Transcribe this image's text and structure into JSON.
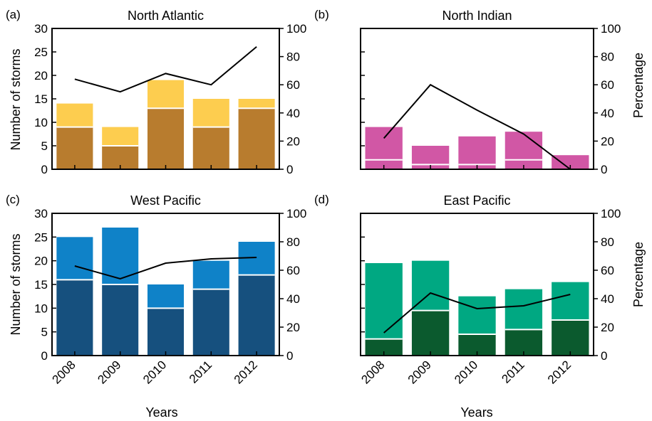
{
  "figure": {
    "x_axis_label": "Years",
    "left_axis_label": "Number of storms",
    "right_axis_label": "Percentage"
  },
  "chart_data": [
    {
      "type": "bar",
      "panel": "(a)",
      "title": "North Atlantic",
      "categories": [
        "2008",
        "2009",
        "2010",
        "2011",
        "2012"
      ],
      "stacked": true,
      "series": [
        {
          "values": [
            9,
            5,
            13,
            9,
            13
          ],
          "color": "#b87c2e",
          "axis": "left"
        },
        {
          "values": [
            5,
            4,
            6,
            6,
            2
          ],
          "color": "#fdcd4f",
          "axis": "left"
        }
      ],
      "line": {
        "values": [
          64,
          55,
          68,
          60,
          87
        ],
        "color": "#000000",
        "axis": "right"
      },
      "ylim_left": [
        0,
        30
      ],
      "yticks_left": [
        0,
        5,
        10,
        15,
        20,
        25,
        30
      ],
      "ylim_right": [
        0,
        100
      ],
      "yticks_right": [
        0,
        20,
        40,
        60,
        80,
        100
      ]
    },
    {
      "type": "bar",
      "panel": "(b)",
      "title": "North Indian",
      "categories": [
        "2008",
        "2009",
        "2010",
        "2011",
        "2012"
      ],
      "stacked": true,
      "series": [
        {
          "values": [
            2,
            1,
            1,
            2,
            0
          ],
          "color": "#d157a5",
          "axis": "left"
        },
        {
          "values": [
            7,
            4,
            6,
            6,
            3
          ],
          "color": "#d157a5",
          "axis": "left"
        }
      ],
      "line": {
        "values": [
          22,
          60,
          42,
          25,
          0
        ],
        "color": "#000000",
        "axis": "right"
      },
      "ylim_left": [
        0,
        30
      ],
      "ylim_right": [
        0,
        100
      ],
      "yticks_right": [
        0,
        20,
        40,
        60,
        80,
        100
      ]
    },
    {
      "type": "bar",
      "panel": "(c)",
      "title": "West Pacific",
      "categories": [
        "2008",
        "2009",
        "2010",
        "2011",
        "2012"
      ],
      "stacked": true,
      "series": [
        {
          "values": [
            16,
            15,
            10,
            14,
            17
          ],
          "color": "#16507e",
          "axis": "left"
        },
        {
          "values": [
            9,
            12,
            5,
            6,
            7
          ],
          "color": "#0f82c8",
          "axis": "left"
        }
      ],
      "line": {
        "values": [
          63,
          54,
          65,
          68,
          69
        ],
        "color": "#000000",
        "axis": "right"
      },
      "ylim_left": [
        0,
        30
      ],
      "yticks_left": [
        0,
        5,
        10,
        15,
        20,
        25,
        30
      ],
      "ylim_right": [
        0,
        100
      ],
      "yticks_right": [
        0,
        20,
        40,
        60,
        80,
        100
      ]
    },
    {
      "type": "bar",
      "panel": "(d)",
      "title": "East Pacific",
      "categories": [
        "2008",
        "2009",
        "2010",
        "2011",
        "2012"
      ],
      "stacked": true,
      "series": [
        {
          "values": [
            3.5,
            9.5,
            4.5,
            5.5,
            7.5
          ],
          "color": "#0b5a2e",
          "axis": "left"
        },
        {
          "values": [
            16,
            10.5,
            8,
            8.5,
            8
          ],
          "color": "#00a882",
          "axis": "left"
        }
      ],
      "line": {
        "values": [
          16,
          44,
          33,
          35,
          43
        ],
        "color": "#000000",
        "axis": "right"
      },
      "ylim_left": [
        0,
        30
      ],
      "ylim_right": [
        0,
        100
      ],
      "yticks_right": [
        0,
        20,
        40,
        60,
        80,
        100
      ]
    }
  ]
}
